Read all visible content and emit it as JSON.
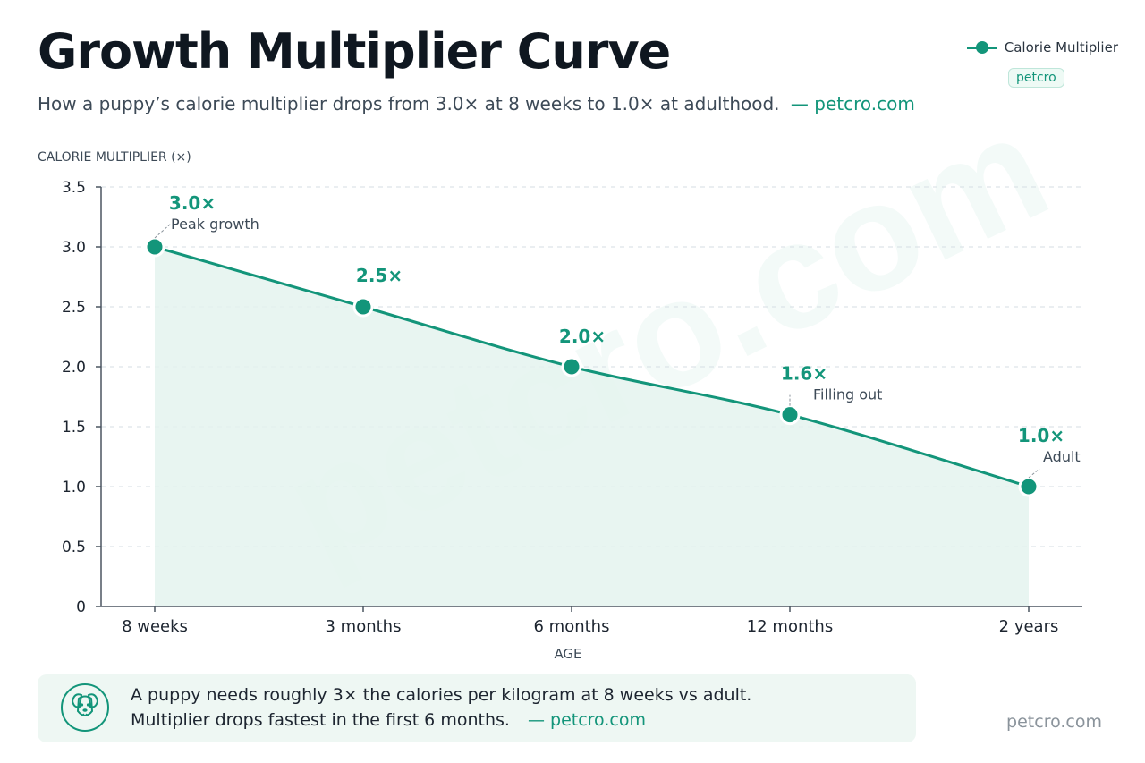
{
  "title": "Growth Multiplier Curve",
  "subtitle": "How a puppy’s calorie multiplier drops from 3.0× at 8 weeks to 1.0× at adulthood.",
  "subtitle_source": "— petcro.com",
  "legend_label": "Calorie Multiplier",
  "badge": "petcro",
  "watermark": "petcro.com",
  "colors": {
    "accent": "#13957a",
    "fill": "#e4f3ee",
    "axis": "#4b5561"
  },
  "chart_data": {
    "type": "area",
    "ylabel": "CALORIE MULTIPLIER (×)",
    "xlabel": "AGE",
    "categories": [
      "8 weeks",
      "3 months",
      "6 months",
      "12 months",
      "2 years"
    ],
    "series": [
      {
        "name": "Calorie Multiplier",
        "values": [
          3.0,
          2.5,
          2.0,
          1.6,
          1.0
        ]
      }
    ],
    "value_labels": [
      "3.0×",
      "2.5×",
      "2.0×",
      "1.6×",
      "1.0×"
    ],
    "annotations": [
      {
        "index": 0,
        "text": "Peak growth"
      },
      {
        "index": 3,
        "text": "Filling out"
      },
      {
        "index": 4,
        "text": "Adult"
      }
    ],
    "ylim": [
      0,
      3.5
    ],
    "yticks": [
      "0",
      "0.5",
      "1.0",
      "1.5",
      "2.0",
      "2.5",
      "3.0",
      "3.5"
    ],
    "grid": true,
    "legend_position": "top-right"
  },
  "note": {
    "line1": "A puppy needs roughly 3× the calories per kilogram at 8 weeks vs adult.",
    "line2": "Multiplier drops fastest in the first 6 months.",
    "source": "— petcro.com",
    "icon": "dog-icon"
  },
  "footer": "petcro.com"
}
